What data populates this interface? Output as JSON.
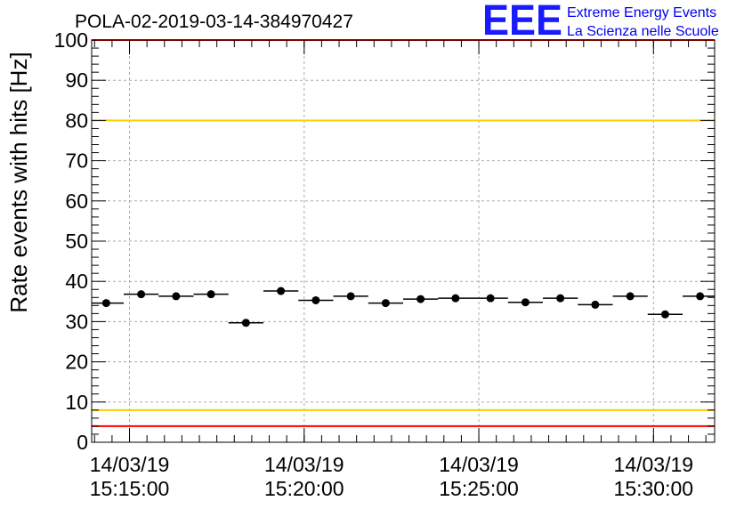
{
  "chart_data": {
    "type": "scatter",
    "title": "POLA-02-2019-03-14-384970427",
    "ylabel": "Rate events with hits [Hz]",
    "xlabel": "",
    "ylim": [
      0,
      100
    ],
    "yticks": [
      0,
      10,
      20,
      30,
      40,
      50,
      60,
      70,
      80,
      90,
      100
    ],
    "xlim": [
      "15:13:55",
      "15:31:45"
    ],
    "xticks": [
      {
        "date": "14/03/19",
        "time": "15:15:00"
      },
      {
        "date": "14/03/19",
        "time": "15:20:00"
      },
      {
        "date": "14/03/19",
        "time": "15:25:00"
      },
      {
        "date": "14/03/19",
        "time": "15:30:00"
      }
    ],
    "grid": true,
    "series": [
      {
        "points": [
          {
            "x": "15:14:20",
            "y": 34.6
          },
          {
            "x": "15:15:20",
            "y": 36.8
          },
          {
            "x": "15:16:20",
            "y": 36.3
          },
          {
            "x": "15:17:20",
            "y": 36.8
          },
          {
            "x": "15:18:20",
            "y": 29.7
          },
          {
            "x": "15:19:20",
            "y": 37.6
          },
          {
            "x": "15:20:20",
            "y": 35.3
          },
          {
            "x": "15:21:20",
            "y": 36.3
          },
          {
            "x": "15:22:20",
            "y": 34.6
          },
          {
            "x": "15:23:20",
            "y": 35.6
          },
          {
            "x": "15:24:20",
            "y": 35.8
          },
          {
            "x": "15:25:20",
            "y": 35.8
          },
          {
            "x": "15:26:20",
            "y": 34.8
          },
          {
            "x": "15:27:20",
            "y": 35.8
          },
          {
            "x": "15:28:20",
            "y": 34.2
          },
          {
            "x": "15:29:20",
            "y": 36.3
          },
          {
            "x": "15:30:20",
            "y": 31.8
          },
          {
            "x": "15:31:20",
            "y": 36.3
          }
        ],
        "bin_seconds": 60,
        "color": "#000000"
      }
    ],
    "reference_lines": [
      {
        "y": 100,
        "color": "#ff0000"
      },
      {
        "y": 80,
        "color": "#ffcc00"
      },
      {
        "y": 8,
        "color": "#ffcc00"
      },
      {
        "y": 4,
        "color": "#ff0000"
      }
    ]
  },
  "logo": {
    "mark": "EEE",
    "line1": "Extreme Energy Events",
    "line2": "La Scienza nelle Scuole",
    "color": "#1a1aff"
  }
}
